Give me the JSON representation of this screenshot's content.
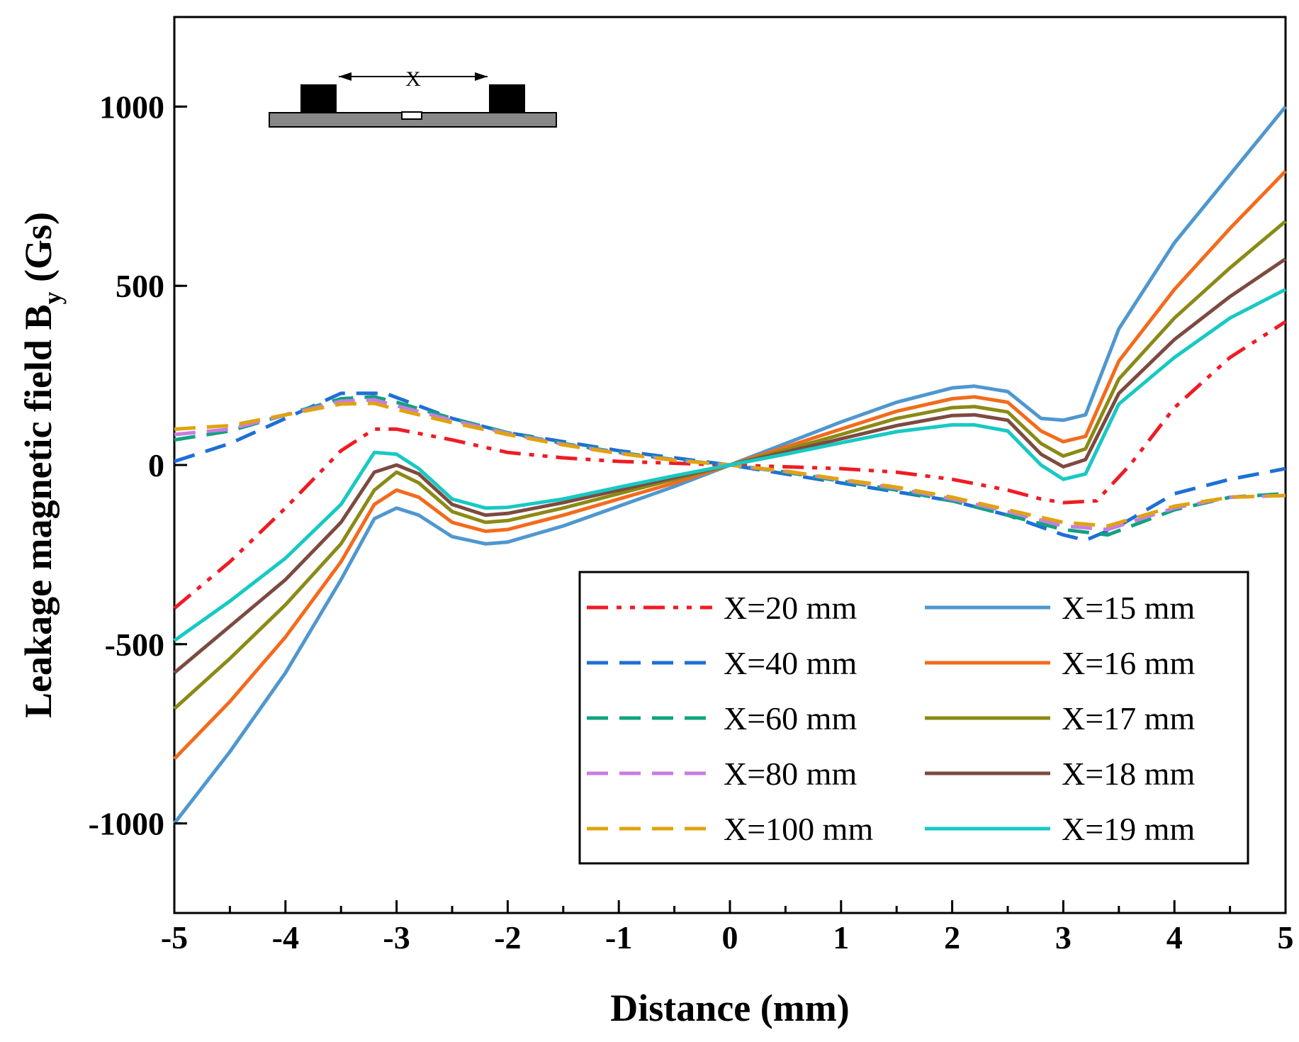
{
  "chart_data": {
    "type": "line",
    "title": "",
    "xlabel": "Distance (mm)",
    "ylabel_main": "Leakage magnetic field B",
    "ylabel_sub": "y",
    "ylabel_unit": " (Gs)",
    "xlim": [
      -5,
      5
    ],
    "ylim": [
      -1250,
      1250
    ],
    "x_ticks": [
      -5,
      -4,
      -3,
      -2,
      -1,
      0,
      1,
      2,
      3,
      4,
      5
    ],
    "x_tick_labels": [
      "-5",
      "-4",
      "-3",
      "-2",
      "-1",
      "0",
      "1",
      "2",
      "3",
      "4",
      "5"
    ],
    "y_ticks": [
      -1000,
      -500,
      0,
      500,
      1000
    ],
    "y_tick_labels": [
      "-1000",
      "-500",
      "0",
      "500",
      "1000"
    ],
    "grid": false,
    "legend_position": "bottom-right",
    "inset_label": "X",
    "series": [
      {
        "name": "X=20 mm",
        "color": "#ee1c25",
        "dash": "dashdotdot",
        "x": [
          -5,
          -4.5,
          -4,
          -3.5,
          -3.2,
          -3,
          -2.5,
          -2,
          -1.5,
          -1,
          -0.5,
          0,
          0.5,
          1,
          1.5,
          2,
          2.5,
          2.8,
          3,
          3.3,
          3.6,
          4,
          4.5,
          5
        ],
        "y": [
          -400,
          -270,
          -120,
          40,
          100,
          100,
          70,
          35,
          20,
          10,
          5,
          0,
          -5,
          -10,
          -20,
          -40,
          -70,
          -95,
          -105,
          -100,
          0,
          160,
          300,
          400
        ]
      },
      {
        "name": "X=40 mm",
        "color": "#1f6fd6",
        "dash": "dash",
        "x": [
          -5,
          -4.5,
          -4,
          -3.5,
          -3.1,
          -2.5,
          -2,
          -1.5,
          -1,
          -0.5,
          0,
          0.5,
          1,
          1.5,
          2,
          2.5,
          3,
          3.2,
          3.5,
          4,
          4.5,
          5
        ],
        "y": [
          10,
          60,
          130,
          200,
          200,
          130,
          90,
          65,
          40,
          20,
          0,
          -25,
          -50,
          -75,
          -100,
          -140,
          -195,
          -210,
          -170,
          -80,
          -40,
          -10
        ]
      },
      {
        "name": "X=60 mm",
        "color": "#10a37f",
        "dash": "dash",
        "x": [
          -5,
          -4.5,
          -4,
          -3.5,
          -3.2,
          -3,
          -2.5,
          -2,
          -1.5,
          -1,
          -0.5,
          0,
          0.5,
          1,
          1.5,
          2,
          2.5,
          3,
          3.4,
          4,
          4.5,
          5
        ],
        "y": [
          70,
          95,
          140,
          185,
          190,
          175,
          130,
          90,
          60,
          35,
          15,
          0,
          -20,
          -45,
          -70,
          -100,
          -140,
          -180,
          -195,
          -125,
          -90,
          -80
        ]
      },
      {
        "name": "X=80 mm",
        "color": "#c77ee0",
        "dash": "dash",
        "x": [
          -5,
          -4.5,
          -4,
          -3.5,
          -3.2,
          -3,
          -2.5,
          -2,
          -1.5,
          -1,
          -0.5,
          0,
          0.5,
          1,
          1.5,
          2,
          2.5,
          3,
          3.4,
          4,
          4.5,
          5
        ],
        "y": [
          85,
          100,
          140,
          178,
          182,
          165,
          125,
          88,
          58,
          33,
          14,
          0,
          -18,
          -42,
          -65,
          -95,
          -130,
          -170,
          -180,
          -120,
          -90,
          -85
        ]
      },
      {
        "name": "X=100 mm",
        "color": "#e0a30f",
        "dash": "dash",
        "x": [
          -5,
          -4.5,
          -4,
          -3.5,
          -3.2,
          -3,
          -2.5,
          -2,
          -1.5,
          -1,
          -0.5,
          0,
          0.5,
          1,
          1.5,
          2,
          2.5,
          3,
          3.4,
          4,
          4.5,
          5
        ],
        "y": [
          100,
          110,
          140,
          170,
          172,
          155,
          118,
          85,
          56,
          32,
          13,
          0,
          -17,
          -40,
          -62,
          -90,
          -125,
          -160,
          -170,
          -115,
          -90,
          -85
        ]
      },
      {
        "name": "X=15 mm",
        "color": "#4f97cf",
        "dash": "solid",
        "x": [
          -5,
          -4.5,
          -4,
          -3.5,
          -3.2,
          -3,
          -2.8,
          -2.5,
          -2.2,
          -2,
          -1.5,
          -1,
          -0.5,
          0,
          0.5,
          1,
          1.5,
          2,
          2.2,
          2.5,
          2.8,
          3,
          3.2,
          3.5,
          4,
          4.5,
          5
        ],
        "y": [
          -1000,
          -800,
          -580,
          -320,
          -150,
          -120,
          -140,
          -200,
          -220,
          -215,
          -170,
          -115,
          -60,
          0,
          60,
          120,
          175,
          215,
          220,
          205,
          130,
          125,
          140,
          380,
          620,
          810,
          1000
        ]
      },
      {
        "name": "X=16 mm",
        "color": "#f26b1d",
        "dash": "solid",
        "x": [
          -5,
          -4.5,
          -4,
          -3.5,
          -3.2,
          -3,
          -2.8,
          -2.5,
          -2.2,
          -2,
          -1.5,
          -1,
          -0.5,
          0,
          0.5,
          1,
          1.5,
          2,
          2.2,
          2.5,
          2.8,
          3,
          3.2,
          3.5,
          4,
          4.5,
          5
        ],
        "y": [
          -820,
          -660,
          -480,
          -270,
          -110,
          -70,
          -90,
          -160,
          -185,
          -180,
          -140,
          -95,
          -50,
          0,
          50,
          100,
          150,
          185,
          190,
          175,
          95,
          65,
          80,
          290,
          490,
          660,
          820
        ]
      },
      {
        "name": "X=17 mm",
        "color": "#8a8a16",
        "dash": "solid",
        "x": [
          -5,
          -4.5,
          -4,
          -3.5,
          -3.2,
          -3,
          -2.8,
          -2.5,
          -2.2,
          -2,
          -1.5,
          -1,
          -0.5,
          0,
          0.5,
          1,
          1.5,
          2,
          2.2,
          2.5,
          2.8,
          3,
          3.2,
          3.5,
          4,
          4.5,
          5
        ],
        "y": [
          -680,
          -540,
          -390,
          -220,
          -70,
          -20,
          -50,
          -130,
          -160,
          -155,
          -120,
          -80,
          -40,
          0,
          42,
          85,
          130,
          160,
          163,
          148,
          60,
          25,
          45,
          240,
          410,
          550,
          680
        ]
      },
      {
        "name": "X=18 mm",
        "color": "#7d4a40",
        "dash": "solid",
        "x": [
          -5,
          -4.5,
          -4,
          -3.5,
          -3.2,
          -3,
          -2.8,
          -2.5,
          -2.2,
          -2,
          -1.5,
          -1,
          -0.5,
          0,
          0.5,
          1,
          1.5,
          2,
          2.2,
          2.5,
          2.8,
          3,
          3.2,
          3.5,
          4,
          4.5,
          5
        ],
        "y": [
          -580,
          -450,
          -320,
          -160,
          -20,
          0,
          -25,
          -110,
          -140,
          -135,
          -105,
          -70,
          -35,
          0,
          36,
          73,
          110,
          138,
          140,
          125,
          30,
          -5,
          15,
          200,
          350,
          470,
          575
        ]
      },
      {
        "name": "X=19 mm",
        "color": "#17c9c4",
        "dash": "solid",
        "x": [
          -5,
          -4.5,
          -4,
          -3.5,
          -3.2,
          -3,
          -2.8,
          -2.5,
          -2.2,
          -2,
          -1.5,
          -1,
          -0.5,
          0,
          0.5,
          1,
          1.5,
          2,
          2.2,
          2.5,
          2.8,
          3,
          3.2,
          3.5,
          4,
          4.5,
          5
        ],
        "y": [
          -490,
          -380,
          -260,
          -110,
          35,
          30,
          -10,
          -95,
          -120,
          -118,
          -95,
          -62,
          -30,
          0,
          30,
          62,
          93,
          112,
          112,
          95,
          0,
          -40,
          -25,
          170,
          300,
          410,
          490
        ]
      }
    ]
  }
}
